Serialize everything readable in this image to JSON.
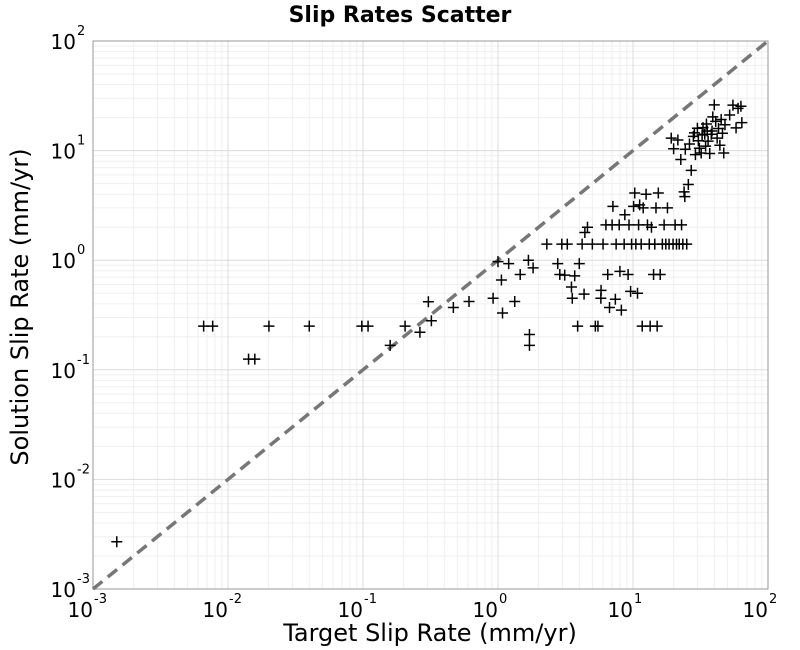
{
  "chart_data": {
    "type": "scatter",
    "title": "Slip Rates Scatter",
    "xlabel": "Target Slip Rate (mm/yr)",
    "ylabel": "Solution Slip Rate (mm/yr)",
    "xscale": "log",
    "yscale": "log",
    "xlim": [
      0.001,
      100
    ],
    "ylim": [
      0.001,
      100
    ],
    "grid": true,
    "legend": "none",
    "x_ticks": [
      {
        "base": "10",
        "exp": "-3",
        "value": 0.001
      },
      {
        "base": "10",
        "exp": "-2",
        "value": 0.01
      },
      {
        "base": "10",
        "exp": "-1",
        "value": 0.1
      },
      {
        "base": "10",
        "exp": "0",
        "value": 1
      },
      {
        "base": "10",
        "exp": "1",
        "value": 10
      },
      {
        "base": "10",
        "exp": "2",
        "value": 100
      }
    ],
    "y_ticks": [
      {
        "base": "10",
        "exp": "-3",
        "value": 0.001
      },
      {
        "base": "10",
        "exp": "-2",
        "value": 0.01
      },
      {
        "base": "10",
        "exp": "-1",
        "value": 0.1
      },
      {
        "base": "10",
        "exp": "0",
        "value": 1
      },
      {
        "base": "10",
        "exp": "1",
        "value": 10
      },
      {
        "base": "10",
        "exp": "2",
        "value": 100
      }
    ],
    "reference_line": {
      "style": "dashed",
      "color": "#777777",
      "from": [
        0.001,
        0.001
      ],
      "to": [
        100,
        100
      ]
    },
    "marker": {
      "shape": "plus",
      "color": "#000000"
    },
    "points": [
      [
        0.0015,
        0.0027
      ],
      [
        0.0066,
        0.25
      ],
      [
        0.0077,
        0.25
      ],
      [
        0.0142,
        0.125
      ],
      [
        0.0158,
        0.125
      ],
      [
        0.0201,
        0.25
      ],
      [
        0.04,
        0.25
      ],
      [
        0.098,
        0.25
      ],
      [
        0.109,
        0.25
      ],
      [
        0.159,
        0.167
      ],
      [
        0.205,
        0.25
      ],
      [
        0.264,
        0.22
      ],
      [
        0.305,
        0.418
      ],
      [
        0.321,
        0.28
      ],
      [
        0.467,
        0.37
      ],
      [
        0.61,
        0.42
      ],
      [
        0.92,
        0.45
      ],
      [
        1.0,
        0.97
      ],
      [
        1.06,
        0.66
      ],
      [
        1.08,
        0.33
      ],
      [
        1.2,
        0.93
      ],
      [
        1.33,
        0.42
      ],
      [
        1.46,
        0.74
      ],
      [
        1.68,
        1.0
      ],
      [
        1.71,
        0.21
      ],
      [
        1.71,
        0.167
      ],
      [
        1.82,
        0.85
      ],
      [
        2.3,
        1.4
      ],
      [
        2.77,
        0.93
      ],
      [
        2.87,
        0.74
      ],
      [
        2.97,
        1.4
      ],
      [
        3.12,
        0.73
      ],
      [
        3.26,
        1.4
      ],
      [
        3.5,
        0.57
      ],
      [
        3.55,
        0.45
      ],
      [
        3.7,
        0.72
      ],
      [
        3.89,
        0.25
      ],
      [
        4.0,
        0.93
      ],
      [
        4.2,
        1.4
      ],
      [
        4.34,
        0.49
      ],
      [
        4.4,
        1.79
      ],
      [
        4.6,
        2.0
      ],
      [
        5.0,
        1.4
      ],
      [
        5.26,
        0.25
      ],
      [
        5.5,
        0.25
      ],
      [
        5.78,
        0.45
      ],
      [
        5.8,
        0.53
      ],
      [
        6.0,
        1.4
      ],
      [
        6.3,
        2.1
      ],
      [
        6.5,
        0.74
      ],
      [
        6.7,
        0.37
      ],
      [
        7.0,
        2.1
      ],
      [
        7.1,
        3.1
      ],
      [
        7.4,
        0.44
      ],
      [
        7.5,
        1.4
      ],
      [
        7.9,
        2.1
      ],
      [
        8.0,
        0.79
      ],
      [
        8.2,
        0.35
      ],
      [
        8.6,
        1.4
      ],
      [
        8.7,
        2.6
      ],
      [
        9.2,
        0.74
      ],
      [
        9.34,
        2.1
      ],
      [
        9.6,
        0.52
      ],
      [
        9.76,
        1.4
      ],
      [
        10.1,
        3.1
      ],
      [
        10.3,
        4.1
      ],
      [
        10.5,
        1.4
      ],
      [
        10.8,
        0.5
      ],
      [
        11.0,
        2.1
      ],
      [
        11.2,
        3.2
      ],
      [
        11.5,
        1.4
      ],
      [
        11.7,
        0.25
      ],
      [
        11.9,
        3.0
      ],
      [
        12.5,
        4.0
      ],
      [
        12.8,
        2.1
      ],
      [
        13.2,
        1.4
      ],
      [
        13.4,
        0.25
      ],
      [
        13.7,
        2.0
      ],
      [
        14.2,
        0.74
      ],
      [
        14.5,
        1.4
      ],
      [
        14.8,
        3.0
      ],
      [
        15.1,
        0.25
      ],
      [
        15.4,
        4.1
      ],
      [
        15.9,
        0.74
      ],
      [
        16.5,
        1.4
      ],
      [
        17.0,
        2.1
      ],
      [
        17.5,
        1.4
      ],
      [
        18.0,
        3.0
      ],
      [
        18.5,
        1.4
      ],
      [
        19.2,
        13.0
      ],
      [
        19.8,
        1.4
      ],
      [
        20.0,
        10.4
      ],
      [
        20.5,
        2.1
      ],
      [
        21.0,
        1.4
      ],
      [
        21.5,
        12.5
      ],
      [
        22.0,
        1.4
      ],
      [
        22.6,
        8.3
      ],
      [
        22.9,
        2.1
      ],
      [
        23.4,
        1.4
      ],
      [
        23.9,
        4.2
      ],
      [
        24.2,
        3.8
      ],
      [
        24.4,
        10.3
      ],
      [
        25.0,
        1.4
      ],
      [
        25.7,
        4.9
      ],
      [
        26.2,
        11.5
      ],
      [
        27.0,
        6.6
      ],
      [
        28.0,
        13.5
      ],
      [
        28.5,
        14.5
      ],
      [
        29.0,
        9.2
      ],
      [
        30.0,
        16.0
      ],
      [
        30.5,
        12.3
      ],
      [
        31.0,
        10.5
      ],
      [
        32.0,
        9.5
      ],
      [
        32.5,
        13.9
      ],
      [
        33.0,
        16.2
      ],
      [
        34.0,
        14.1
      ],
      [
        34.5,
        11.0
      ],
      [
        35.0,
        17.5
      ],
      [
        35.5,
        15.1
      ],
      [
        36.0,
        12.2
      ],
      [
        37.0,
        9.4
      ],
      [
        38.0,
        14.1
      ],
      [
        38.5,
        15.1
      ],
      [
        39.0,
        20.3
      ],
      [
        40.0,
        26.1
      ],
      [
        41.0,
        18.5
      ],
      [
        42.0,
        13.0
      ],
      [
        43.0,
        15.9
      ],
      [
        44.0,
        11.2
      ],
      [
        45.0,
        19.2
      ],
      [
        46.0,
        14.4
      ],
      [
        47.0,
        9.5
      ],
      [
        48.0,
        17.2
      ],
      [
        52.0,
        21.1
      ],
      [
        55.0,
        26.0
      ],
      [
        58.0,
        16.1
      ],
      [
        60.0,
        24.3
      ],
      [
        63.0,
        25.4
      ],
      [
        64.0,
        18.0
      ]
    ]
  }
}
